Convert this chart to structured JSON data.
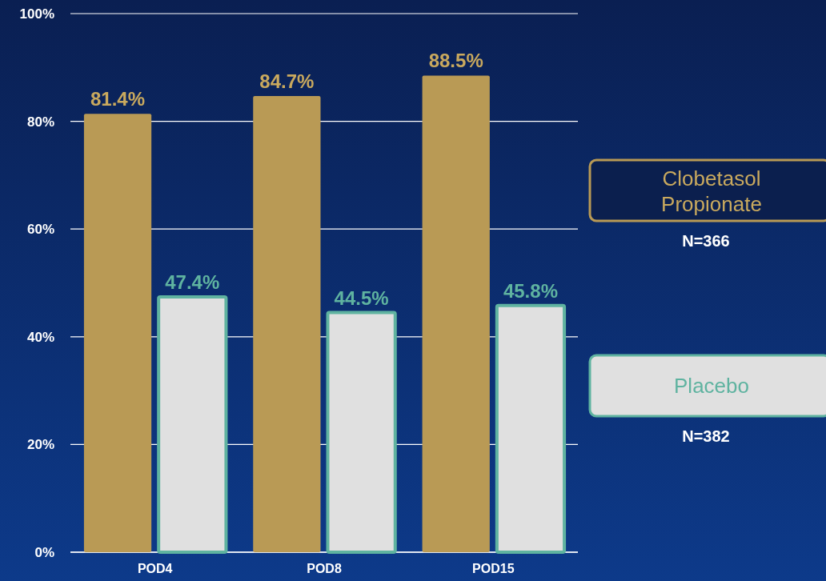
{
  "chart_data": {
    "type": "bar",
    "categories": [
      "POD4",
      "POD8",
      "POD15"
    ],
    "series": [
      {
        "name": "Clobetasol Propionate",
        "color": "#b99a55",
        "values": [
          81.4,
          84.7,
          88.5
        ],
        "value_labels": [
          "81.4%",
          "84.7%",
          "88.5%"
        ]
      },
      {
        "name": "Placebo",
        "color": "#e0e0e0",
        "values": [
          47.4,
          44.5,
          45.8
        ],
        "value_labels": [
          "47.4%",
          "44.5%",
          "45.8%"
        ]
      }
    ],
    "ylim": [
      0,
      100
    ],
    "yticks": [
      {
        "value": 0,
        "label": "0%"
      },
      {
        "value": 20,
        "label": "20%"
      },
      {
        "value": 40,
        "label": "40%"
      },
      {
        "value": 60,
        "label": "60%"
      },
      {
        "value": 80,
        "label": "80%"
      },
      {
        "value": 100,
        "label": "100%"
      }
    ],
    "grid": "y",
    "legend": "right",
    "annotations": [
      "N=366",
      "N=382"
    ]
  }
}
